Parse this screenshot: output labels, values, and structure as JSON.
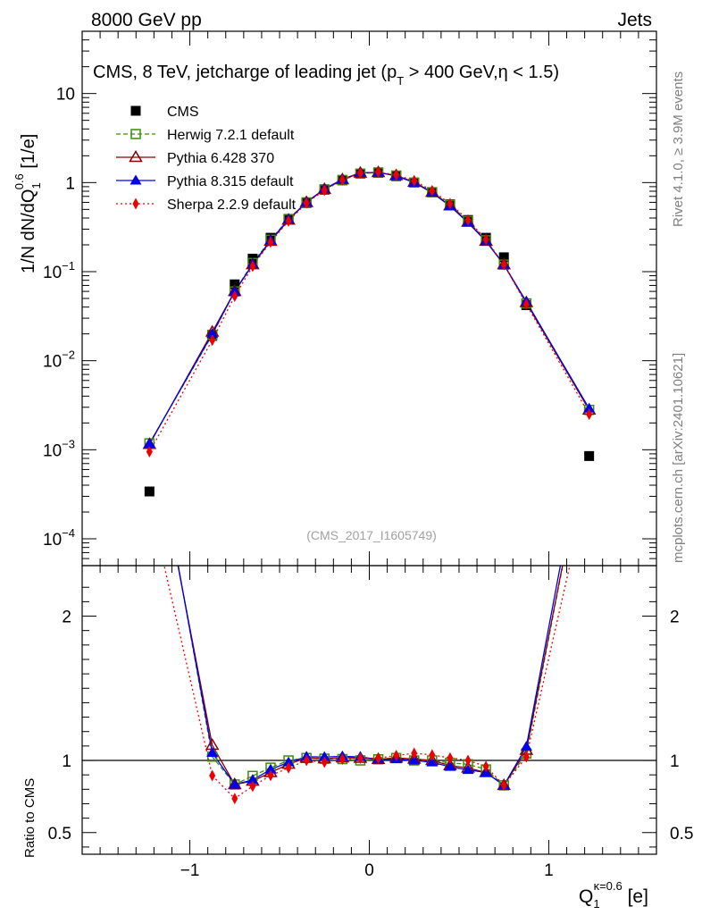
{
  "header": {
    "left": "8000 GeV pp",
    "right": "Jets"
  },
  "side": {
    "rivet": "Rivet 4.1.0, ≥ 3.9M events",
    "url": "mcplots.cern.ch [arXiv:2401.10621]"
  },
  "chart_data": {
    "type": "line",
    "title_parts": {
      "a": "CMS, 8 TeV, jetcharge of leading jet (p",
      "sub": "T",
      "b": " > 400 GeV,η < 1.5)"
    },
    "analysis_label": "(CMS_2017_I1605749)",
    "ylabel_main": {
      "a": "1/N dN/dQ",
      "sub": "1",
      "sup": "0.6",
      "b": " [1/e]"
    },
    "ylabel_ratio": "Ratio to CMS",
    "xlabel": {
      "a": "Q",
      "sub": "1",
      "sup": "κ=0.6",
      "b": " [e]"
    },
    "xlim": [
      -1.6,
      1.6
    ],
    "ylim_main": [
      5e-05,
      50
    ],
    "ylim_ratio": [
      0.35,
      2.35
    ],
    "xticks": [
      {
        "v": -1,
        "label": "−1"
      },
      {
        "v": 0,
        "label": "0"
      },
      {
        "v": 1,
        "label": "1"
      }
    ],
    "yticks_main": [
      {
        "v": 10,
        "base": "10",
        "exp": ""
      },
      {
        "v": 1,
        "base": "1",
        "exp": ""
      },
      {
        "v": 0.1,
        "base": "10",
        "exp": "−1"
      },
      {
        "v": 0.01,
        "base": "10",
        "exp": "−2"
      },
      {
        "v": 0.001,
        "base": "10",
        "exp": "−3"
      },
      {
        "v": 0.0001,
        "base": "10",
        "exp": "−4"
      }
    ],
    "yticks_ratio": [
      {
        "v": 2,
        "label": "2"
      },
      {
        "v": 1,
        "label": "1"
      },
      {
        "v": 0.5,
        "label": "0.5"
      }
    ],
    "x": [
      -1.225,
      -0.875,
      -0.75,
      -0.65,
      -0.55,
      -0.45,
      -0.35,
      -0.25,
      -0.15,
      -0.05,
      0.05,
      0.15,
      0.25,
      0.35,
      0.45,
      0.55,
      0.65,
      0.75,
      0.875,
      1.225
    ],
    "series": [
      {
        "name": "CMS",
        "color": "#000000",
        "marker": "square-filled",
        "dash": "",
        "values": [
          0.00034,
          0.019,
          0.072,
          0.14,
          0.24,
          0.39,
          0.59,
          0.83,
          1.06,
          1.26,
          1.29,
          1.18,
          1.0,
          0.78,
          0.57,
          0.38,
          0.24,
          0.145,
          0.042,
          0.00085
        ]
      },
      {
        "name": "Herwig 7.2.1 default",
        "color": "#3c8c0a",
        "marker": "square-open",
        "dash": "5,3",
        "values": [
          0.00118,
          0.0195,
          0.06,
          0.125,
          0.228,
          0.39,
          0.6,
          0.84,
          1.07,
          1.26,
          1.3,
          1.2,
          1.0,
          0.78,
          0.56,
          0.37,
          0.225,
          0.12,
          0.044,
          0.0028
        ]
      },
      {
        "name": "Pythia 6.428 370",
        "color": "#8b0000",
        "marker": "triangle-open",
        "dash": "",
        "values": [
          0.00115,
          0.021,
          0.06,
          0.12,
          0.22,
          0.38,
          0.6,
          0.84,
          1.08,
          1.28,
          1.3,
          1.2,
          1.01,
          0.78,
          0.55,
          0.36,
          0.22,
          0.12,
          0.045,
          0.0028
        ]
      },
      {
        "name": "Pythia 8.315 default",
        "color": "#0000ee",
        "marker": "triangle-filled",
        "dash": "",
        "values": [
          0.00117,
          0.02,
          0.06,
          0.121,
          0.225,
          0.385,
          0.605,
          0.85,
          1.09,
          1.29,
          1.3,
          1.19,
          1.0,
          0.77,
          0.545,
          0.355,
          0.22,
          0.12,
          0.046,
          0.0029
        ]
      },
      {
        "name": "Sherpa 2.2.9 default",
        "color": "#ee0000",
        "marker": "diamond-filled",
        "dash": "2,3",
        "values": [
          0.00095,
          0.017,
          0.053,
          0.115,
          0.215,
          0.37,
          0.59,
          0.82,
          1.07,
          1.28,
          1.31,
          1.22,
          1.05,
          0.81,
          0.58,
          0.38,
          0.23,
          0.12,
          0.043,
          0.0025
        ]
      }
    ]
  }
}
